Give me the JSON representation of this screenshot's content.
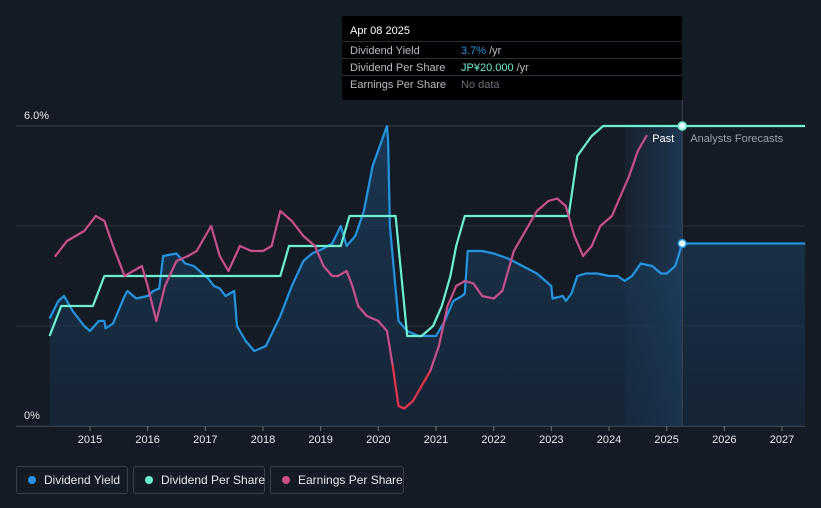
{
  "tooltip": {
    "date": "Apr 08 2025",
    "rows": [
      {
        "label": "Dividend Yield",
        "value": "3.7%",
        "unit": "/yr",
        "color": "#2394df"
      },
      {
        "label": "Dividend Per Share",
        "value": "JP¥20.000",
        "unit": "/yr",
        "color": "#6cf0d0"
      },
      {
        "label": "Earnings Per Share",
        "value": "No data",
        "unit": "",
        "color": "#6b7079"
      }
    ]
  },
  "labels": {
    "past": "Past",
    "forecast": "Analysts Forecasts"
  },
  "legend": [
    {
      "label": "Dividend Yield",
      "color": "#2394df"
    },
    {
      "label": "Dividend Per Share",
      "color": "#6cf0d0"
    },
    {
      "label": "Earnings Per Share",
      "color": "#c84f8c"
    }
  ],
  "chart_data": {
    "type": "line",
    "y_ticks": [
      {
        "value": 6.0,
        "label": "6.0%"
      },
      {
        "value": 0,
        "label": "0%"
      }
    ],
    "ylim": [
      0,
      6.0
    ],
    "xlim": [
      2014.3,
      2027.4
    ],
    "x_ticks": [
      "2015",
      "2016",
      "2017",
      "2018",
      "2019",
      "2020",
      "2021",
      "2022",
      "2023",
      "2024",
      "2025",
      "2026",
      "2027"
    ],
    "grid": true,
    "legend_position": "bottom-left",
    "past_boundary": 2025.27,
    "forecast_shading_start": 2024.27,
    "series": [
      {
        "name": "Dividend Yield",
        "color": "#2394df",
        "area": true,
        "points": [
          [
            2014.3,
            2.15
          ],
          [
            2014.45,
            2.5
          ],
          [
            2014.55,
            2.6
          ],
          [
            2014.7,
            2.3
          ],
          [
            2014.9,
            2.0
          ],
          [
            2015.0,
            1.9
          ],
          [
            2015.15,
            2.1
          ],
          [
            2015.25,
            2.1
          ],
          [
            2015.27,
            1.95
          ],
          [
            2015.4,
            2.05
          ],
          [
            2015.6,
            2.6
          ],
          [
            2015.65,
            2.7
          ],
          [
            2015.8,
            2.55
          ],
          [
            2016.0,
            2.6
          ],
          [
            2016.1,
            2.7
          ],
          [
            2016.2,
            2.75
          ],
          [
            2016.27,
            3.4
          ],
          [
            2016.5,
            3.45
          ],
          [
            2016.65,
            3.25
          ],
          [
            2016.8,
            3.2
          ],
          [
            2016.95,
            3.05
          ],
          [
            2017.05,
            2.95
          ],
          [
            2017.15,
            2.8
          ],
          [
            2017.25,
            2.75
          ],
          [
            2017.35,
            2.6
          ],
          [
            2017.5,
            2.7
          ],
          [
            2017.55,
            2.0
          ],
          [
            2017.7,
            1.7
          ],
          [
            2017.85,
            1.5
          ],
          [
            2018.05,
            1.6
          ],
          [
            2018.3,
            2.2
          ],
          [
            2018.5,
            2.8
          ],
          [
            2018.7,
            3.3
          ],
          [
            2018.85,
            3.45
          ],
          [
            2018.95,
            3.5
          ],
          [
            2019.05,
            3.55
          ],
          [
            2019.2,
            3.65
          ],
          [
            2019.35,
            4.0
          ],
          [
            2019.45,
            3.6
          ],
          [
            2019.6,
            3.8
          ],
          [
            2019.75,
            4.3
          ],
          [
            2019.9,
            5.2
          ],
          [
            2020.15,
            6.0
          ],
          [
            2020.17,
            5.7
          ],
          [
            2020.2,
            4.0
          ],
          [
            2020.35,
            2.1
          ],
          [
            2020.5,
            1.9
          ],
          [
            2020.7,
            1.8
          ],
          [
            2020.85,
            1.8
          ],
          [
            2021.0,
            1.8
          ],
          [
            2021.15,
            2.1
          ],
          [
            2021.3,
            2.5
          ],
          [
            2021.45,
            2.6
          ],
          [
            2021.5,
            2.65
          ],
          [
            2021.55,
            3.5
          ],
          [
            2021.8,
            3.5
          ],
          [
            2022.0,
            3.45
          ],
          [
            2022.25,
            3.35
          ],
          [
            2022.5,
            3.2
          ],
          [
            2022.75,
            3.05
          ],
          [
            2023.0,
            2.8
          ],
          [
            2023.02,
            2.55
          ],
          [
            2023.2,
            2.6
          ],
          [
            2023.25,
            2.5
          ],
          [
            2023.35,
            2.65
          ],
          [
            2023.45,
            3.0
          ],
          [
            2023.6,
            3.05
          ],
          [
            2023.8,
            3.05
          ],
          [
            2024.0,
            3.0
          ],
          [
            2024.15,
            3.0
          ],
          [
            2024.27,
            2.9
          ],
          [
            2024.4,
            3.0
          ],
          [
            2024.55,
            3.25
          ],
          [
            2024.75,
            3.2
          ],
          [
            2024.9,
            3.05
          ],
          [
            2025.0,
            3.05
          ],
          [
            2025.15,
            3.2
          ],
          [
            2025.27,
            3.65
          ],
          [
            2025.5,
            3.65
          ],
          [
            2026.0,
            3.65
          ],
          [
            2026.5,
            3.65
          ],
          [
            2027.0,
            3.65
          ],
          [
            2027.4,
            3.65
          ]
        ]
      },
      {
        "name": "Dividend Per Share",
        "color": "#6cf0d0",
        "area": false,
        "points": [
          [
            2014.3,
            1.8
          ],
          [
            2014.5,
            2.4
          ],
          [
            2014.6,
            2.4
          ],
          [
            2015.05,
            2.4
          ],
          [
            2015.25,
            3.0
          ],
          [
            2015.4,
            3.0
          ],
          [
            2018.3,
            3.0
          ],
          [
            2018.45,
            3.6
          ],
          [
            2019.35,
            3.6
          ],
          [
            2019.5,
            4.2
          ],
          [
            2020.3,
            4.2
          ],
          [
            2020.5,
            1.8
          ],
          [
            2020.75,
            1.8
          ],
          [
            2020.95,
            2.0
          ],
          [
            2021.1,
            2.4
          ],
          [
            2021.25,
            3.0
          ],
          [
            2021.35,
            3.6
          ],
          [
            2021.5,
            4.2
          ],
          [
            2023.3,
            4.2
          ],
          [
            2023.45,
            5.4
          ],
          [
            2023.7,
            5.8
          ],
          [
            2023.9,
            6.0
          ],
          [
            2025.27,
            6.0
          ],
          [
            2026.0,
            6.0
          ],
          [
            2027.4,
            6.0
          ]
        ]
      },
      {
        "name": "Earnings Per Share",
        "color": "#c84f8c",
        "low_color": "#e8334a",
        "area": false,
        "points": [
          [
            2014.4,
            3.4
          ],
          [
            2014.6,
            3.7
          ],
          [
            2014.75,
            3.8
          ],
          [
            2014.9,
            3.9
          ],
          [
            2015.1,
            4.2
          ],
          [
            2015.25,
            4.1
          ],
          [
            2015.4,
            3.6
          ],
          [
            2015.6,
            3.0
          ],
          [
            2015.75,
            3.1
          ],
          [
            2015.9,
            3.2
          ],
          [
            2016.0,
            2.8
          ],
          [
            2016.15,
            2.1
          ],
          [
            2016.3,
            2.8
          ],
          [
            2016.5,
            3.3
          ],
          [
            2016.7,
            3.4
          ],
          [
            2016.85,
            3.5
          ],
          [
            2016.9,
            3.6
          ],
          [
            2017.1,
            4.0
          ],
          [
            2017.25,
            3.4
          ],
          [
            2017.4,
            3.1
          ],
          [
            2017.6,
            3.6
          ],
          [
            2017.8,
            3.5
          ],
          [
            2018.0,
            3.5
          ],
          [
            2018.15,
            3.6
          ],
          [
            2018.3,
            4.3
          ],
          [
            2018.5,
            4.1
          ],
          [
            2018.7,
            3.8
          ],
          [
            2018.9,
            3.6
          ],
          [
            2019.05,
            3.2
          ],
          [
            2019.2,
            3.0
          ],
          [
            2019.3,
            3.0
          ],
          [
            2019.45,
            3.1
          ],
          [
            2019.55,
            2.8
          ],
          [
            2019.65,
            2.4
          ],
          [
            2019.8,
            2.2
          ],
          [
            2020.0,
            2.1
          ],
          [
            2020.15,
            1.9
          ],
          [
            2020.25,
            1.2
          ],
          [
            2020.35,
            0.4
          ],
          [
            2020.45,
            0.35
          ],
          [
            2020.6,
            0.5
          ],
          [
            2020.75,
            0.8
          ],
          [
            2020.9,
            1.1
          ],
          [
            2021.05,
            1.6
          ],
          [
            2021.2,
            2.4
          ],
          [
            2021.35,
            2.8
          ],
          [
            2021.5,
            2.9
          ],
          [
            2021.65,
            2.85
          ],
          [
            2021.8,
            2.6
          ],
          [
            2022.0,
            2.55
          ],
          [
            2022.15,
            2.7
          ],
          [
            2022.35,
            3.5
          ],
          [
            2022.55,
            3.9
          ],
          [
            2022.75,
            4.3
          ],
          [
            2022.95,
            4.5
          ],
          [
            2023.1,
            4.55
          ],
          [
            2023.25,
            4.4
          ],
          [
            2023.4,
            3.8
          ],
          [
            2023.55,
            3.4
          ],
          [
            2023.7,
            3.6
          ],
          [
            2023.85,
            4.0
          ],
          [
            2024.05,
            4.2
          ],
          [
            2024.2,
            4.6
          ],
          [
            2024.35,
            5.0
          ],
          [
            2024.5,
            5.5
          ],
          [
            2024.65,
            5.8
          ]
        ]
      }
    ],
    "markers": [
      {
        "x": 2025.27,
        "y": 3.65,
        "color": "#2394df"
      },
      {
        "x": 2025.27,
        "y": 6.0,
        "color": "#6cf0d0"
      }
    ]
  }
}
